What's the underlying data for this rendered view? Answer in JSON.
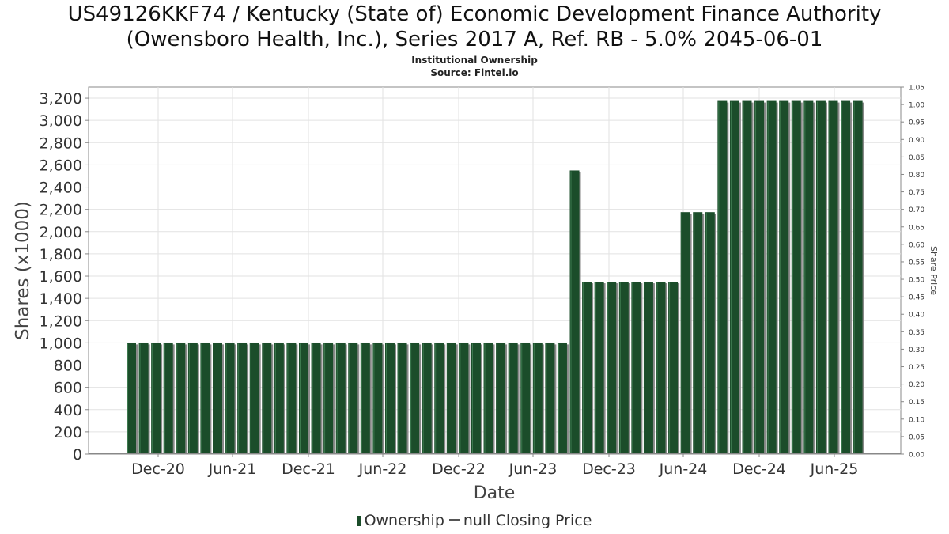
{
  "chart_data": {
    "type": "bar",
    "title": [
      "US49126KKF74 / Kentucky (State of) Economic Development Finance Authority",
      "(Owensboro Health, Inc.), Series 2017 A, Ref. RB - 5.0% 2045-06-01"
    ],
    "subtitle": [
      "Institutional Ownership",
      "Source: Fintel.io"
    ],
    "xlabel": "Date",
    "ylabel": "Shares (x1000)",
    "y2label": "Share Price",
    "ylim": [
      0,
      3300
    ],
    "y2lim": [
      0,
      1.05
    ],
    "yticks": [
      "0",
      "200",
      "400",
      "600",
      "800",
      "1,000",
      "1,200",
      "1,400",
      "1,600",
      "1,800",
      "2,000",
      "2,200",
      "2,400",
      "2,600",
      "2,800",
      "3,000",
      "3,200"
    ],
    "y2ticks": [
      "0.00",
      "0.05",
      "0.10",
      "0.15",
      "0.20",
      "0.25",
      "0.30",
      "0.35",
      "0.40",
      "0.45",
      "0.50",
      "0.55",
      "0.60",
      "0.65",
      "0.70",
      "0.75",
      "0.80",
      "0.85",
      "0.90",
      "0.95",
      "1.00",
      "1.05"
    ],
    "xticks": [
      "Dec-20",
      "Jun-21",
      "Dec-21",
      "Jun-22",
      "Dec-22",
      "Jun-23",
      "Dec-23",
      "Jun-24",
      "Dec-24",
      "Jun-25"
    ],
    "grid": true,
    "legend_position": "bottom",
    "series": [
      {
        "name": "Ownership",
        "color": "#1b4d2a",
        "values": [
          1000,
          1000,
          1000,
          1000,
          1000,
          1000,
          1000,
          1000,
          1000,
          1000,
          1000,
          1000,
          1000,
          1000,
          1000,
          1000,
          1000,
          1000,
          1000,
          1000,
          1000,
          1000,
          1000,
          1000,
          1000,
          1000,
          1000,
          1000,
          1000,
          1000,
          1000,
          1000,
          1000,
          1000,
          1000,
          1000,
          2550,
          1550,
          1550,
          1550,
          1550,
          1550,
          1550,
          1550,
          1550,
          2175,
          2175,
          2175,
          3175,
          3175,
          3175,
          3175,
          3175,
          3175,
          3175,
          3175,
          3175,
          3175,
          3175,
          3175
        ]
      },
      {
        "name": "null Closing Price",
        "color": "#555555",
        "values": []
      }
    ]
  }
}
